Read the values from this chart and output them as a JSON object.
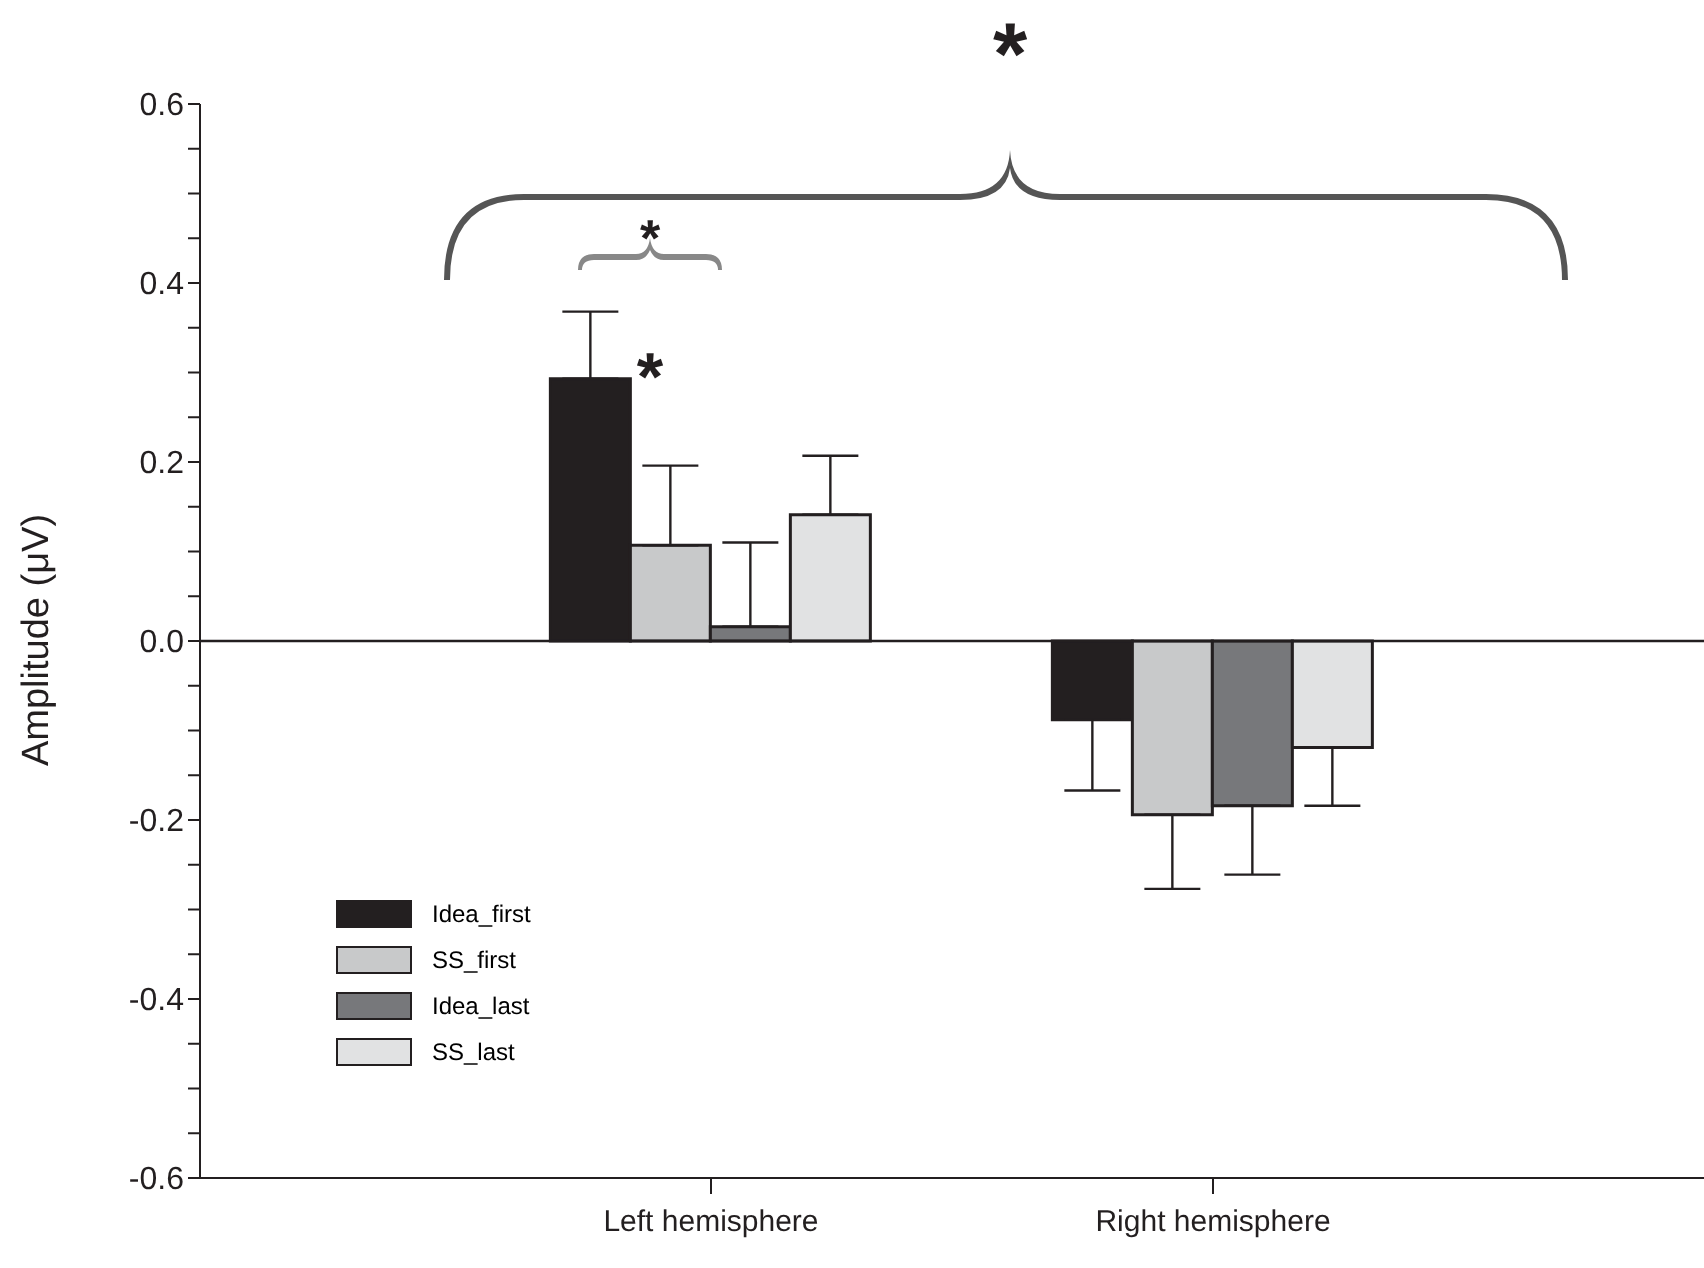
{
  "chart_data": {
    "type": "bar",
    "ylabel": "Amplitude (μV)",
    "categories": [
      "Left hemisphere",
      "Right hemisphere"
    ],
    "series": [
      {
        "name": "Idea_first",
        "color": "#231f20",
        "values": [
          0.293,
          -0.088
        ],
        "errors": [
          [
            0.293,
            0.368
          ],
          [
            -0.167,
            -0.088
          ]
        ]
      },
      {
        "name": "SS_first",
        "color": "#c8c9ca",
        "values": [
          0.107,
          -0.194
        ],
        "errors": [
          [
            0.107,
            0.196
          ],
          [
            -0.277,
            -0.194
          ]
        ]
      },
      {
        "name": "Idea_last",
        "color": "#77787b",
        "values": [
          0.016,
          -0.184
        ],
        "errors": [
          [
            0.016,
            0.11
          ],
          [
            -0.261,
            -0.184
          ]
        ]
      },
      {
        "name": "SS_last",
        "color": "#e1e2e3",
        "values": [
          0.141,
          -0.119
        ],
        "errors": [
          [
            0.141,
            0.207
          ],
          [
            -0.184,
            -0.119
          ]
        ]
      }
    ],
    "ylim": [
      -0.6,
      0.6
    ],
    "yticks": [
      -0.6,
      {
        "value": -0.55,
        "label": null
      },
      {
        "value": -0.5,
        "label": null
      },
      {
        "value": -0.45,
        "label": null
      },
      -0.4,
      {
        "value": -0.35,
        "label": null
      },
      {
        "value": -0.3,
        "label": null
      },
      {
        "value": -0.25,
        "label": null
      },
      -0.2,
      {
        "value": -0.15,
        "label": null
      },
      {
        "value": -0.1,
        "label": null
      },
      {
        "value": -0.05,
        "label": null
      },
      {
        "value": 0,
        "label": "0.0"
      },
      {
        "value": 0.05,
        "label": null
      },
      {
        "value": 0.1,
        "label": null
      },
      {
        "value": 0.15,
        "label": null
      },
      0.2,
      {
        "value": 0.25,
        "label": null
      },
      {
        "value": 0.3,
        "label": null
      },
      {
        "value": 0.35,
        "label": null
      },
      0.4,
      {
        "value": 0.45,
        "label": null
      },
      {
        "value": 0.5,
        "label": null
      },
      {
        "value": 0.55,
        "label": null
      },
      0.6
    ],
    "annotations": [
      "*",
      "*",
      "*"
    ],
    "ref_lines": [
      {
        "axis": "y",
        "value": 0
      }
    ],
    "legend": "bottom left",
    "grid": false
  }
}
